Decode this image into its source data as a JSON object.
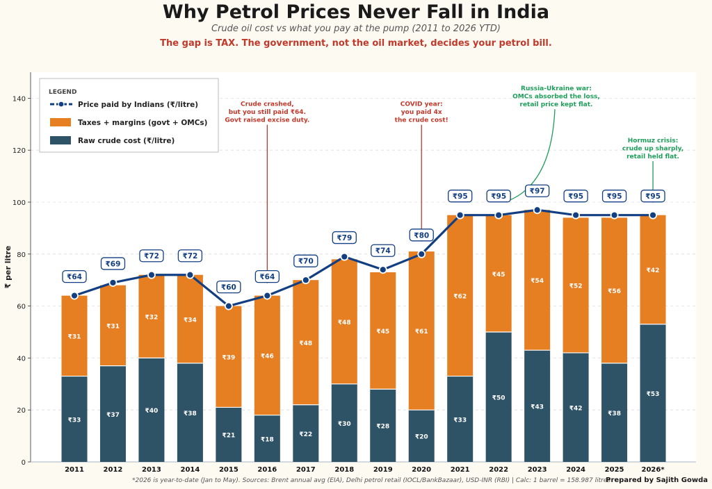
{
  "header": {
    "title": "Why Petrol Prices Never Fall in India",
    "subtitle": "Crude oil cost vs what you pay at the pump (2011 to 2026 YTD)",
    "tagline": "The gap is TAX. The government, not the oil market, decides your petrol bill."
  },
  "footer": {
    "note": "*2026 is year-to-date (Jan to May). Sources: Brent annual avg (EIA), Delhi petrol retail (IOCL/BankBazaar), USD-INR (RBI)  |  Calc: 1 barrel = 158.987 litres",
    "credit": "Prepared by Sajith Gowda"
  },
  "colors": {
    "crude": "#2e5266",
    "tax": "#e67e22",
    "line": "#123e82",
    "annotation_red": "#c0392b",
    "annotation_green": "#1e9e5a"
  },
  "chart_data": {
    "type": "bar",
    "stacked": true,
    "categories": [
      "2011",
      "2012",
      "2013",
      "2014",
      "2015",
      "2016",
      "2017",
      "2018",
      "2019",
      "2020",
      "2021",
      "2022",
      "2023",
      "2024",
      "2025",
      "2026*"
    ],
    "series": [
      {
        "name": "Raw crude cost (₹/litre)",
        "values": [
          33,
          37,
          40,
          38,
          21,
          18,
          22,
          30,
          28,
          20,
          33,
          50,
          43,
          42,
          38,
          53
        ],
        "labels": [
          "₹33",
          "₹37",
          "₹40",
          "₹38",
          "₹21",
          "₹18",
          "₹22",
          "₹30",
          "₹28",
          "₹20",
          "₹33",
          "₹50",
          "₹43",
          "₹42",
          "₹38",
          "₹53"
        ]
      },
      {
        "name": "Taxes + margins (govt + OMCs)",
        "values": [
          31,
          31,
          32,
          34,
          39,
          46,
          48,
          48,
          45,
          61,
          62,
          45,
          54,
          52,
          56,
          42
        ],
        "labels": [
          "₹31",
          "₹31",
          "₹32",
          "₹34",
          "₹39",
          "₹46",
          "₹48",
          "₹48",
          "₹45",
          "₹61",
          "₹62",
          "₹45",
          "₹54",
          "₹52",
          "₹56",
          "₹42"
        ]
      }
    ],
    "line": {
      "name": "Price paid by Indians (₹/litre)",
      "values": [
        64,
        69,
        72,
        72,
        60,
        64,
        70,
        79,
        74,
        80,
        95,
        95,
        97,
        95,
        95,
        95
      ],
      "labels": [
        "₹64",
        "₹69",
        "₹72",
        "₹72",
        "₹60",
        "₹64",
        "₹70",
        "₹79",
        "₹74",
        "₹80",
        "₹95",
        "₹95",
        "₹97",
        "₹95",
        "₹95",
        "₹95"
      ]
    },
    "ylabel": "₹ per litre",
    "xlabel": "",
    "ylim": [
      0,
      150
    ],
    "yticks": [
      "0",
      "20",
      "40",
      "60",
      "80",
      "100",
      "120",
      "140"
    ],
    "grid": true,
    "legend": {
      "title": "LEGEND",
      "placement": "top-left"
    },
    "annotations": [
      {
        "year_index": 5,
        "lines": [
          "Crude crashed,",
          "but you still paid ₹64.",
          "Govt raised excise duty."
        ],
        "tone": "red",
        "text_y_value": 137
      },
      {
        "year_index": 9,
        "lines": [
          "COVID year:",
          "you paid 4x",
          "the crude cost!"
        ],
        "tone": "red",
        "text_y_value": 137
      },
      {
        "year_index": 11,
        "lines": [
          "Russia-Ukraine war:",
          "OMCs absorbed the loss,",
          "retail price kept flat."
        ],
        "tone": "green",
        "text_y_value": 143
      },
      {
        "year_index": 15,
        "lines": [
          "Hormuz crisis:",
          "crude up sharply,",
          "retail held flat."
        ],
        "tone": "green",
        "text_y_value": 123
      }
    ]
  }
}
